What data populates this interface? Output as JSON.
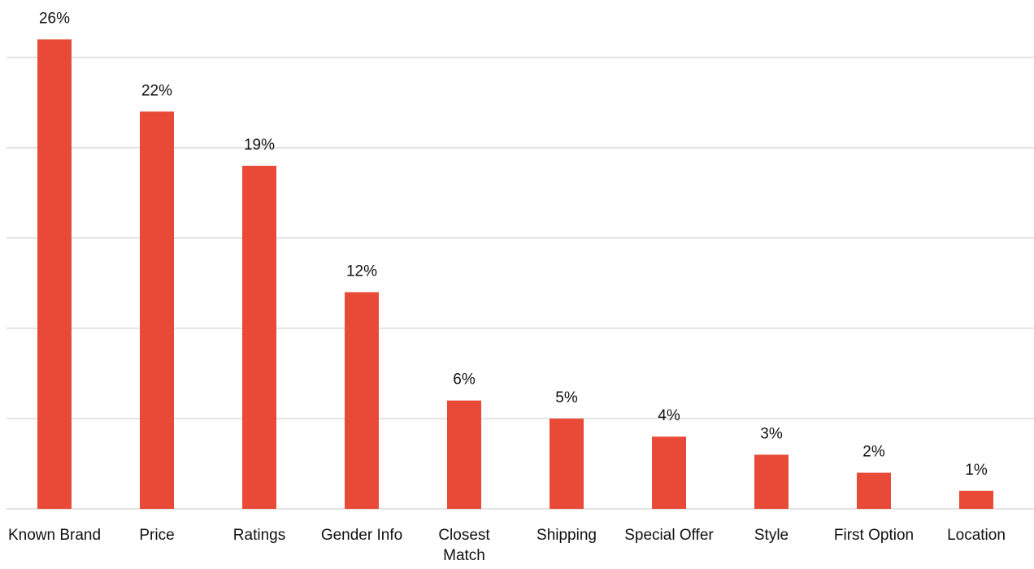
{
  "chart_data": {
    "type": "bar",
    "categories": [
      "Known Brand",
      "Price",
      "Ratings",
      "Gender Info",
      "Closest Match",
      "Shipping",
      "Special Offer",
      "Style",
      "First Option",
      "Location"
    ],
    "values": [
      26,
      22,
      19,
      12,
      6,
      5,
      4,
      3,
      2,
      1
    ],
    "value_labels": [
      "26%",
      "22%",
      "19%",
      "12%",
      "6%",
      "5%",
      "4%",
      "3%",
      "2%",
      "1%"
    ],
    "color": "#e84a37",
    "ylim": [
      0,
      28
    ],
    "yticks": [
      0,
      5,
      10,
      15,
      20,
      25
    ],
    "grid": true
  }
}
